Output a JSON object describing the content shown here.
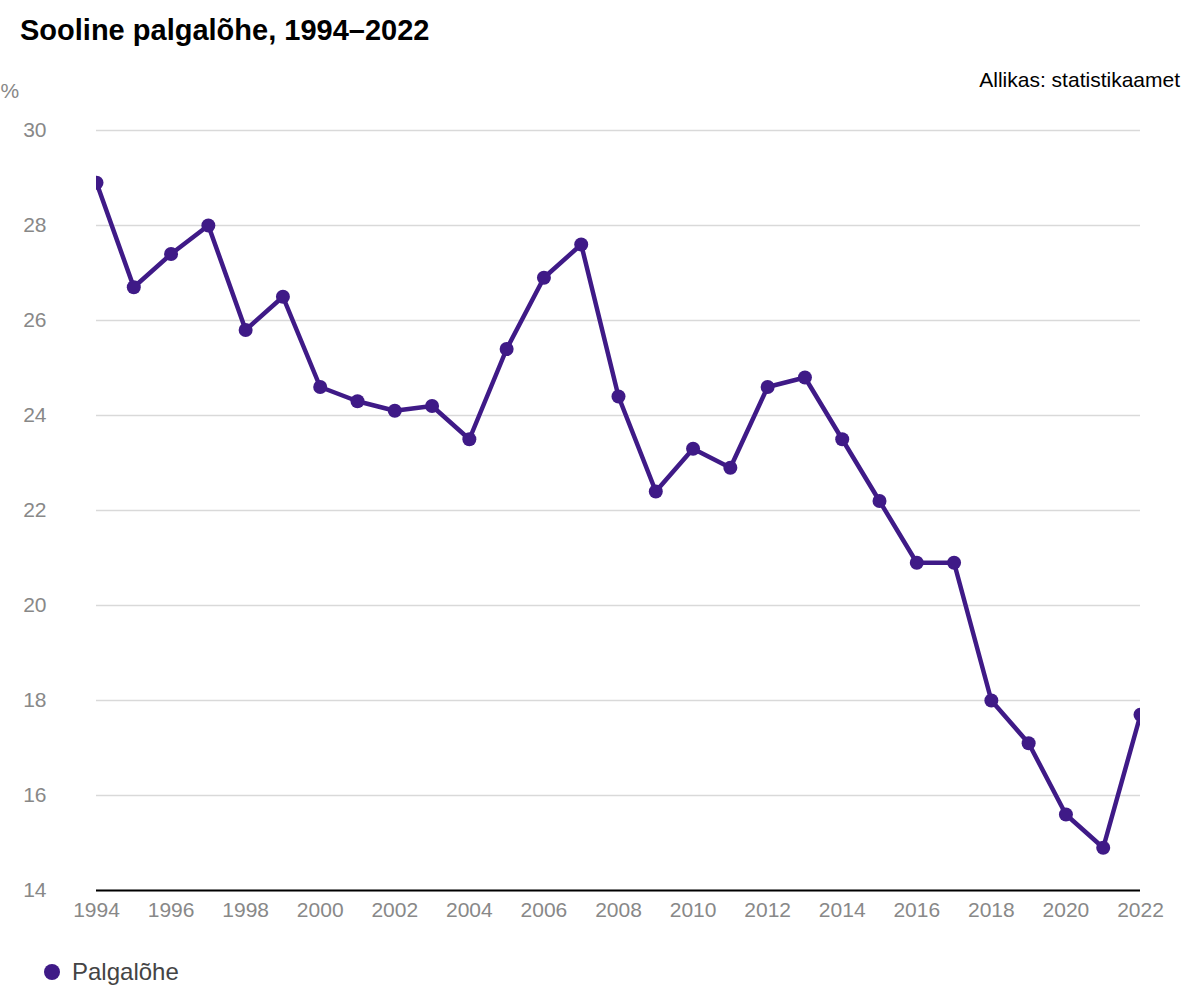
{
  "chart_data": {
    "type": "line",
    "title": "Sooline palgalõhe, 1994–2022",
    "source": "Allikas: statistikaamet",
    "ylabel": "%",
    "x": [
      1994,
      1995,
      1996,
      1997,
      1998,
      1999,
      2000,
      2001,
      2002,
      2003,
      2004,
      2005,
      2006,
      2007,
      2008,
      2009,
      2010,
      2011,
      2012,
      2013,
      2014,
      2015,
      2016,
      2017,
      2018,
      2019,
      2020,
      2021,
      2022
    ],
    "series": [
      {
        "name": "Palgalõhe",
        "color": "#3f1a87",
        "values": [
          28.9,
          26.7,
          27.4,
          28.0,
          25.8,
          26.5,
          24.6,
          24.3,
          24.1,
          24.2,
          23.5,
          25.4,
          26.9,
          27.6,
          24.4,
          22.4,
          23.3,
          22.9,
          24.6,
          24.8,
          23.5,
          22.2,
          20.9,
          20.9,
          18.0,
          17.1,
          15.6,
          14.9,
          17.7
        ]
      }
    ],
    "xlim": [
      1994,
      2022
    ],
    "xticks": [
      1994,
      1996,
      1998,
      2000,
      2002,
      2004,
      2006,
      2008,
      2010,
      2012,
      2014,
      2016,
      2018,
      2020,
      2022
    ],
    "ylim": [
      14,
      30
    ],
    "yticks": [
      14,
      16,
      18,
      20,
      22,
      24,
      26,
      28,
      30
    ],
    "grid": true,
    "marker": "circle",
    "legend": "bottom-left"
  }
}
